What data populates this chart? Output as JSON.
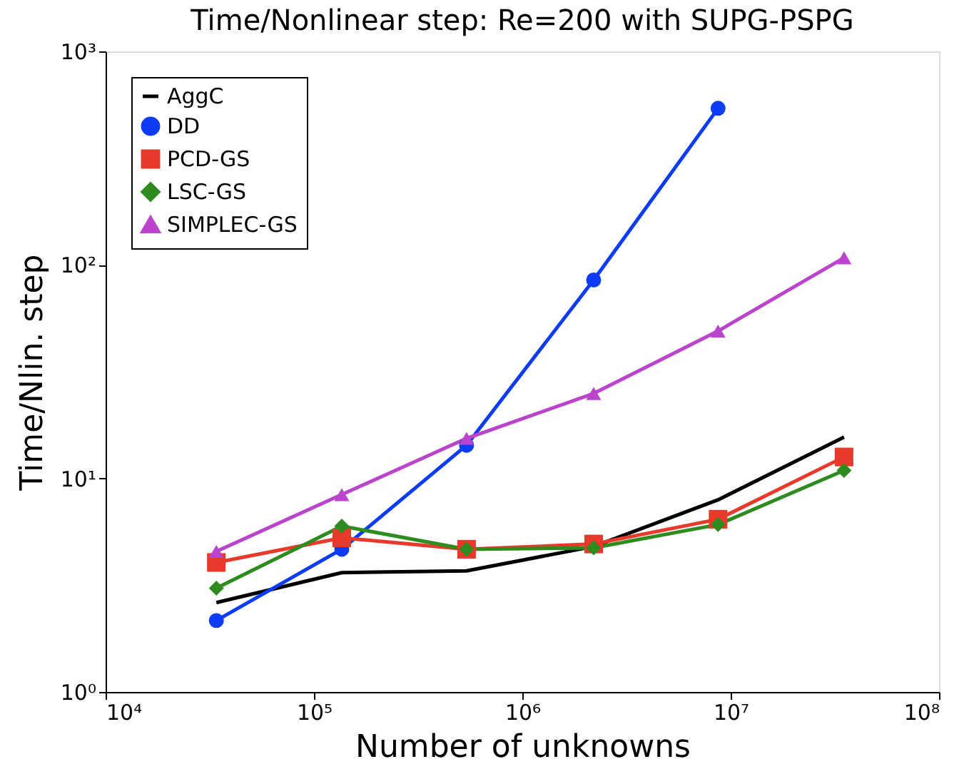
{
  "chart_data": {
    "type": "line",
    "title": "Time/Nonlinear step: Re=200 with SUPG-PSPG",
    "xlabel": "Number of unknowns",
    "ylabel": "Time/Nlin. step",
    "log": "xy",
    "grid": false,
    "legend": "top left",
    "xlim": [
      10000,
      100000000
    ],
    "ylim": [
      1,
      1000
    ],
    "xticks": [
      {
        "value": 10000,
        "label": "10⁴"
      },
      {
        "value": 100000,
        "label": "10⁵"
      },
      {
        "value": 1000000,
        "label": "10⁶"
      },
      {
        "value": 10000000,
        "label": "10⁷"
      },
      {
        "value": 100000000,
        "label": "10⁸"
      }
    ],
    "yticks": [
      {
        "value": 1,
        "label": "10⁰"
      },
      {
        "value": 10,
        "label": "10¹"
      },
      {
        "value": 100,
        "label": "10²"
      },
      {
        "value": 1000,
        "label": "10³"
      }
    ],
    "x": [
      34000,
      136000,
      540000,
      2200000,
      8700000,
      35000000
    ],
    "series": [
      {
        "name": "AggC",
        "color": "#000000",
        "marker": "none",
        "values": [
          2.62,
          3.62,
          3.69,
          4.8,
          7.94,
          15.6
        ]
      },
      {
        "name": "DD",
        "color": "#0c3cf5",
        "marker": "circle",
        "values": [
          2.16,
          4.66,
          14.3,
          85,
          541,
          null
        ]
      },
      {
        "name": "PCD-GS",
        "color": "#e8392b",
        "marker": "square",
        "values": [
          4.04,
          5.27,
          4.66,
          4.93,
          6.44,
          12.6
        ]
      },
      {
        "name": "LSC-GS",
        "color": "#2e8b1e",
        "marker": "diamond",
        "values": [
          3.06,
          5.98,
          4.66,
          4.73,
          6.08,
          10.9
        ]
      },
      {
        "name": "SIMPLEC-GS",
        "color": "#bb44cc",
        "marker": "triangle",
        "values": [
          4.55,
          8.4,
          15.4,
          25,
          49,
          108
        ]
      }
    ]
  }
}
